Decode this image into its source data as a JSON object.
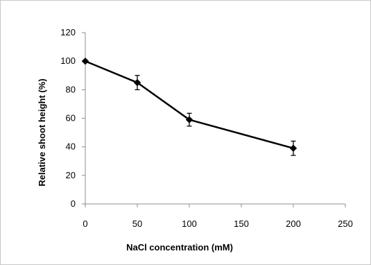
{
  "chart_data": {
    "type": "line",
    "title": "",
    "xlabel": "NaCl concentration (mM)",
    "ylabel": "Relative shoot height (%)",
    "xlim": [
      0,
      250
    ],
    "ylim": [
      0,
      120
    ],
    "xticks": [
      0,
      50,
      100,
      150,
      200,
      250
    ],
    "yticks": [
      0,
      20,
      40,
      60,
      80,
      100,
      120
    ],
    "grid": false,
    "legend": "none",
    "series": [
      {
        "x": [
          0,
          50,
          100,
          200
        ],
        "y": [
          100,
          85,
          59,
          39
        ],
        "error": [
          0,
          5,
          4.5,
          5
        ],
        "color": "#000000",
        "marker": "diamond"
      }
    ]
  }
}
